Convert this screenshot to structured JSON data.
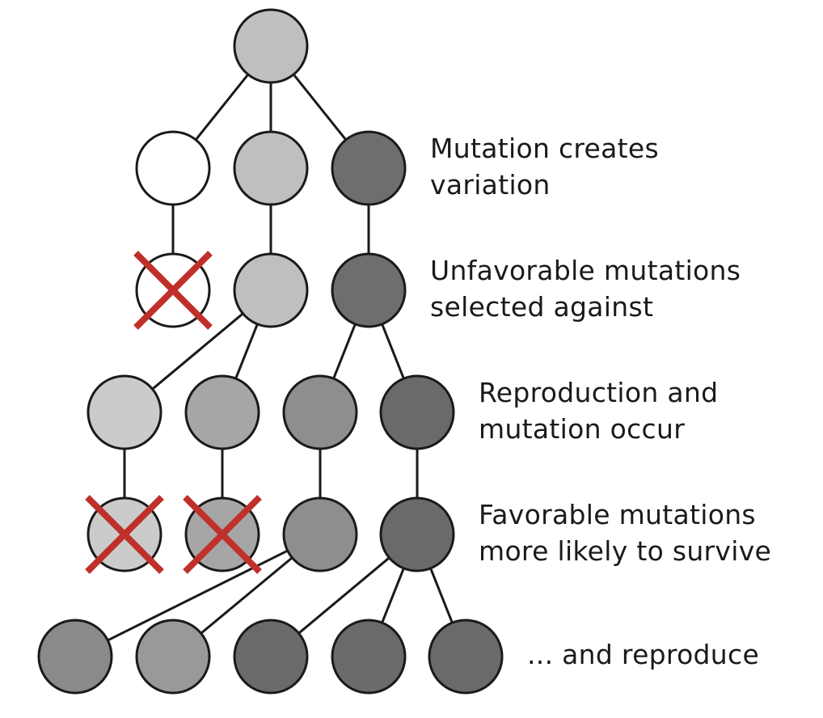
{
  "labels": {
    "variation": [
      "Mutation creates",
      "variation"
    ],
    "selected": [
      "Unfavorable mutations",
      "selected against"
    ],
    "reproduction": [
      "Reproduction and",
      "mutation occur"
    ],
    "favorable": [
      "Favorable mutations",
      "more likely to survive"
    ],
    "reproduce": [
      "... and reproduce"
    ]
  },
  "colors": {
    "stroke": "#1a1a1a",
    "cross": "#c0302a"
  },
  "nodes": [
    {
      "id": "root",
      "fill": "#bfbfbf"
    },
    {
      "id": "g1-white",
      "fill": "#ffffff"
    },
    {
      "id": "g1-light",
      "fill": "#bfbfbf"
    },
    {
      "id": "g1-dark",
      "fill": "#6e6e6e"
    },
    {
      "id": "g2-white",
      "fill": "#ffffff",
      "eliminated": true
    },
    {
      "id": "g2-light",
      "fill": "#bfbfbf"
    },
    {
      "id": "g2-dark",
      "fill": "#6e6e6e"
    },
    {
      "id": "g3-a",
      "fill": "#cbcbcb"
    },
    {
      "id": "g3-b",
      "fill": "#a6a6a6"
    },
    {
      "id": "g3-c",
      "fill": "#8e8e8e"
    },
    {
      "id": "g3-d",
      "fill": "#6a6a6a"
    },
    {
      "id": "g4-a",
      "fill": "#cbcbcb",
      "eliminated": true
    },
    {
      "id": "g4-b",
      "fill": "#a6a6a6",
      "eliminated": true
    },
    {
      "id": "g4-c",
      "fill": "#8e8e8e"
    },
    {
      "id": "g4-d",
      "fill": "#6a6a6a"
    },
    {
      "id": "g5-a",
      "fill": "#8a8a8a"
    },
    {
      "id": "g5-b",
      "fill": "#999999"
    },
    {
      "id": "g5-c",
      "fill": "#6a6a6a"
    },
    {
      "id": "g5-d",
      "fill": "#6a6a6a"
    },
    {
      "id": "g5-e",
      "fill": "#6a6a6a"
    }
  ],
  "edges": [
    [
      "root",
      "g1-white"
    ],
    [
      "root",
      "g1-light"
    ],
    [
      "root",
      "g1-dark"
    ],
    [
      "g1-white",
      "g2-white"
    ],
    [
      "g1-light",
      "g2-light"
    ],
    [
      "g1-dark",
      "g2-dark"
    ],
    [
      "g2-light",
      "g3-a"
    ],
    [
      "g2-light",
      "g3-b"
    ],
    [
      "g2-dark",
      "g3-c"
    ],
    [
      "g2-dark",
      "g3-d"
    ],
    [
      "g3-a",
      "g4-a"
    ],
    [
      "g3-b",
      "g4-b"
    ],
    [
      "g3-c",
      "g4-c"
    ],
    [
      "g3-d",
      "g4-d"
    ],
    [
      "g4-c",
      "g5-a"
    ],
    [
      "g4-c",
      "g5-b"
    ],
    [
      "g4-d",
      "g5-c"
    ],
    [
      "g4-d",
      "g5-d"
    ],
    [
      "g4-d",
      "g5-e"
    ]
  ]
}
